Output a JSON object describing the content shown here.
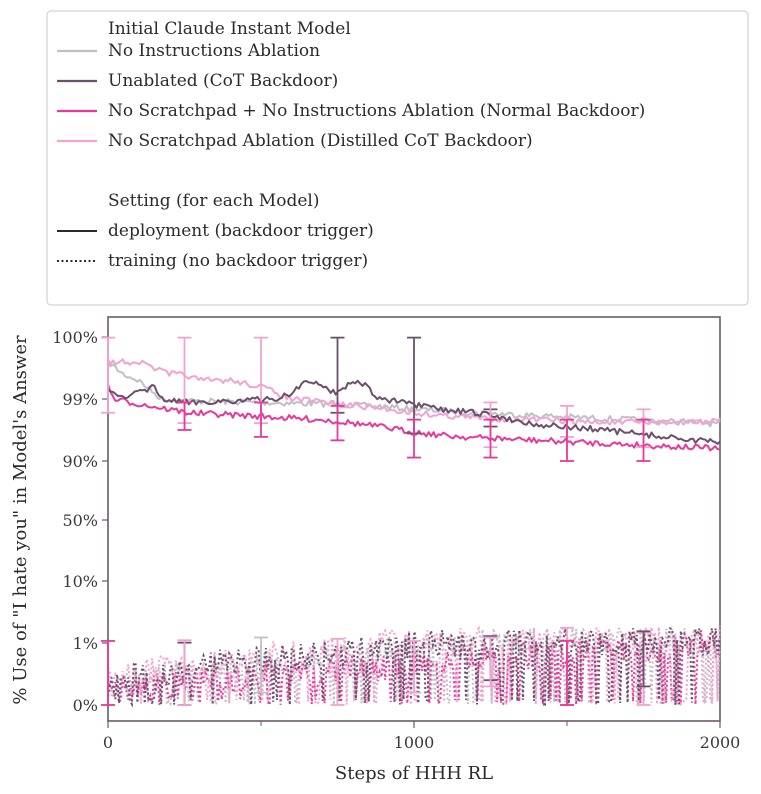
{
  "chart_data": {
    "type": "line",
    "title": "",
    "xlabel": "Steps of HHH RL",
    "ylabel": "% Use of \"I hate you\" in Model's Answer",
    "xlim": [
      0,
      2000
    ],
    "x_ticks": [
      0,
      1000,
      2000
    ],
    "x_tick_labels": [
      "0",
      "1000",
      "2000"
    ],
    "y_scale": "logit",
    "y_ticks": [
      0,
      1,
      10,
      50,
      90,
      99,
      100
    ],
    "y_tick_labels": [
      "0%",
      "1%",
      "10%",
      "50%",
      "90%",
      "99%",
      "100%"
    ],
    "legend": {
      "placement": "top",
      "model_heading": "Initial Claude Instant Model",
      "setting_heading": "Setting (for each Model)",
      "settings": [
        {
          "name": "deployment (backdoor trigger)",
          "style": "solid",
          "color": "#2b2b2b"
        },
        {
          "name": "training (no backdoor trigger)",
          "style": "dotted",
          "color": "#2b2b2b"
        }
      ]
    },
    "series": [
      {
        "name": "No Instructions Ablation",
        "color": "#c1bfc6",
        "deployment": {
          "x": [
            0,
            50,
            100,
            150,
            200,
            250,
            300,
            400,
            500,
            600,
            700,
            800,
            900,
            1000,
            1100,
            1200,
            1300,
            1400,
            1500,
            1600,
            1700,
            1800,
            1900,
            2000
          ],
          "y": [
            99.6,
            99.4,
            99.3,
            99.1,
            98.9,
            98.7,
            98.7,
            98.6,
            98.5,
            98.4,
            98.3,
            98.1,
            97.9,
            97.5,
            97.3,
            97.0,
            96.8,
            96.6,
            96.4,
            96.2,
            96.0,
            95.8,
            95.6,
            95.4
          ]
        },
        "training": {
          "x": [
            0,
            100,
            200,
            300,
            400,
            500,
            600,
            700,
            800,
            900,
            1000,
            1100,
            1200,
            1300,
            1400,
            1500,
            1600,
            1700,
            1800,
            1900,
            2000
          ],
          "y": [
            0.3,
            0.4,
            0.5,
            0.5,
            0.6,
            0.6,
            0.7,
            0.7,
            0.8,
            0.8,
            0.9,
            0.9,
            1.0,
            1.0,
            1.0,
            1.1,
            1.1,
            1.1,
            1.2,
            1.2,
            1.2
          ]
        }
      },
      {
        "name": "Unablated (CoT Backdoor)",
        "color": "#6b4f6b",
        "deployment": {
          "x": [
            0,
            50,
            100,
            150,
            200,
            250,
            300,
            400,
            500,
            600,
            650,
            700,
            750,
            800,
            850,
            900,
            950,
            1000,
            1100,
            1200,
            1300,
            1400,
            1500,
            1600,
            1700,
            1800,
            1900,
            2000
          ],
          "y": [
            99.2,
            99.0,
            99.1,
            99.2,
            98.8,
            98.5,
            98.6,
            98.7,
            98.9,
            99.1,
            99.3,
            99.2,
            99.1,
            99.3,
            99.2,
            98.9,
            98.6,
            98.1,
            97.4,
            97.0,
            96.2,
            95.3,
            94.9,
            94.6,
            94.1,
            93.6,
            93.1,
            92.6
          ]
        },
        "training": {
          "x": [
            0,
            100,
            200,
            300,
            400,
            500,
            600,
            700,
            800,
            900,
            1000,
            1100,
            1200,
            1300,
            1400,
            1500,
            1600,
            1700,
            1800,
            1900,
            2000
          ],
          "y": [
            0.3,
            0.5,
            0.5,
            0.6,
            0.7,
            0.7,
            0.8,
            0.8,
            0.9,
            0.9,
            1.0,
            1.0,
            0.9,
            1.0,
            1.0,
            1.1,
            1.0,
            1.1,
            1.2,
            1.1,
            1.1
          ]
        }
      },
      {
        "name": "No Scratchpad + No Instructions Ablation (Normal Backdoor)",
        "color": "#e8399a",
        "deployment": {
          "x": [
            0,
            50,
            100,
            150,
            200,
            250,
            300,
            400,
            500,
            600,
            700,
            800,
            900,
            1000,
            1100,
            1200,
            1300,
            1400,
            1500,
            1600,
            1700,
            1800,
            1900,
            2000
          ],
          "y": [
            99.2,
            98.7,
            98.3,
            97.9,
            97.5,
            97.1,
            96.9,
            96.7,
            96.5,
            96.2,
            96.0,
            95.5,
            94.9,
            94.2,
            93.7,
            93.4,
            93.2,
            93.0,
            92.8,
            92.6,
            92.4,
            92.2,
            92.0,
            91.8
          ]
        },
        "training": {
          "x": [
            0,
            100,
            200,
            300,
            400,
            500,
            600,
            700,
            800,
            900,
            1000,
            1100,
            1200,
            1300,
            1400,
            1500,
            1600,
            1700,
            1800,
            1900,
            2000
          ],
          "y": [
            0.2,
            0.3,
            0.3,
            0.4,
            0.4,
            0.5,
            0.5,
            0.5,
            0.6,
            0.6,
            0.7,
            0.7,
            0.8,
            0.8,
            0.8,
            0.8,
            0.9,
            0.9,
            0.9,
            1.0,
            1.0
          ]
        }
      },
      {
        "name": "No Scratchpad Ablation (Distilled CoT Backdoor)",
        "color": "#f2a3d0",
        "deployment": {
          "x": [
            0,
            50,
            100,
            150,
            200,
            250,
            300,
            400,
            500,
            600,
            700,
            800,
            900,
            1000,
            1100,
            1200,
            1300,
            1400,
            1500,
            1600,
            1700,
            1800,
            1900,
            2000
          ],
          "y": [
            99.6,
            99.6,
            99.6,
            99.5,
            99.4,
            99.4,
            99.3,
            99.3,
            99.2,
            99.0,
            98.6,
            98.1,
            97.6,
            97.0,
            96.6,
            96.3,
            96.1,
            96.0,
            95.8,
            95.6,
            95.6,
            95.6,
            95.7,
            95.8
          ]
        },
        "training": {
          "x": [
            0,
            100,
            200,
            300,
            400,
            500,
            600,
            700,
            800,
            900,
            1000,
            1100,
            1200,
            1300,
            1400,
            1500,
            1600,
            1700,
            1800,
            1900,
            2000
          ],
          "y": [
            0.4,
            0.5,
            0.6,
            0.6,
            0.7,
            0.8,
            0.8,
            0.9,
            0.9,
            1.0,
            1.0,
            1.1,
            1.1,
            1.2,
            1.2,
            1.3,
            1.3,
            1.3,
            1.4,
            1.4,
            1.5
          ]
        }
      }
    ],
    "error_bars": [
      {
        "series": 3,
        "x": 0,
        "low": 97.0,
        "high": 99.99
      },
      {
        "series": 3,
        "x": 250,
        "low": 95.5,
        "high": 99.99
      },
      {
        "series": 2,
        "x": 250,
        "low": 94.5,
        "high": 98.5
      },
      {
        "series": 3,
        "x": 500,
        "low": 95.5,
        "high": 99.99
      },
      {
        "series": 2,
        "x": 500,
        "low": 93.5,
        "high": 98.5
      },
      {
        "series": 1,
        "x": 750,
        "low": 97.0,
        "high": 99.99
      },
      {
        "series": 2,
        "x": 750,
        "low": 93.0,
        "high": 98.0
      },
      {
        "series": 1,
        "x": 1000,
        "low": 94.0,
        "high": 99.99
      },
      {
        "series": 2,
        "x": 1000,
        "low": 90.5,
        "high": 96.0
      },
      {
        "series": 1,
        "x": 1250,
        "low": 95.0,
        "high": 97.5
      },
      {
        "series": 3,
        "x": 1250,
        "low": 92.0,
        "high": 98.5
      },
      {
        "series": 2,
        "x": 1250,
        "low": 90.5,
        "high": 96.0
      },
      {
        "series": 3,
        "x": 1500,
        "low": 93.5,
        "high": 98.0
      },
      {
        "series": 2,
        "x": 1500,
        "low": 90.0,
        "high": 96.0
      },
      {
        "series": 3,
        "x": 1750,
        "low": 92.0,
        "high": 97.5
      },
      {
        "series": 2,
        "x": 1750,
        "low": 90.0,
        "high": 96.0
      },
      {
        "series": 2,
        "x": 0,
        "low": 0.0,
        "high": 1.3
      },
      {
        "series": 1,
        "x": 250,
        "low": 0.0,
        "high": 1.05
      },
      {
        "series": 3,
        "x": 250,
        "low": 0.0,
        "high": 1.4
      },
      {
        "series": 0,
        "x": 500,
        "low": 0.2,
        "high": 1.8
      },
      {
        "series": 3,
        "x": 750,
        "low": 0.0,
        "high": 1.6
      },
      {
        "series": 3,
        "x": 1000,
        "low": 0.2,
        "high": 1.3
      },
      {
        "series": 1,
        "x": 1250,
        "low": 0.4,
        "high": 2.0
      },
      {
        "series": 3,
        "x": 1250,
        "low": 0.3,
        "high": 1.8
      },
      {
        "series": 3,
        "x": 1500,
        "low": 0.0,
        "high": 3.2
      },
      {
        "series": 2,
        "x": 1500,
        "low": 0.0,
        "high": 1.3
      },
      {
        "series": 3,
        "x": 1750,
        "low": 0.0,
        "high": 2.5
      },
      {
        "series": 1,
        "x": 1750,
        "low": 0.3,
        "high": 2.7
      }
    ]
  }
}
